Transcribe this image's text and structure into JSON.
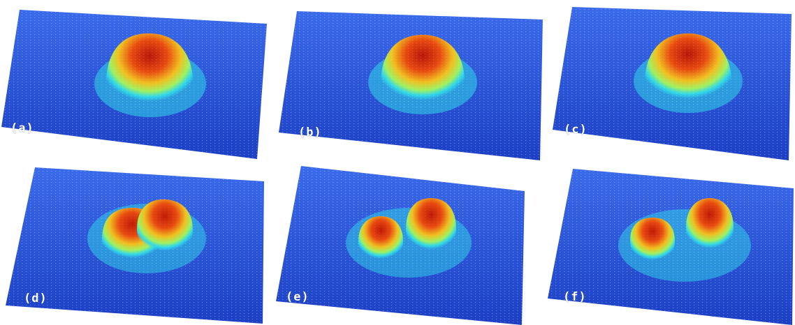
{
  "figure": {
    "panels": [
      {
        "label": "(a)",
        "peaks": 1
      },
      {
        "label": "(b)",
        "peaks": 1
      },
      {
        "label": "(c)",
        "peaks": 1
      },
      {
        "label": "(d)",
        "peaks": 2
      },
      {
        "label": "(e)",
        "peaks": 2
      },
      {
        "label": "(f)",
        "peaks": 2
      }
    ]
  },
  "colors": {
    "surface_low": "#1e4fd8",
    "surface_mid": "#2fd6e8",
    "surface_warm": "#e0f040",
    "peak_top": "#c01a08",
    "grid_dots": "#ffffff"
  }
}
